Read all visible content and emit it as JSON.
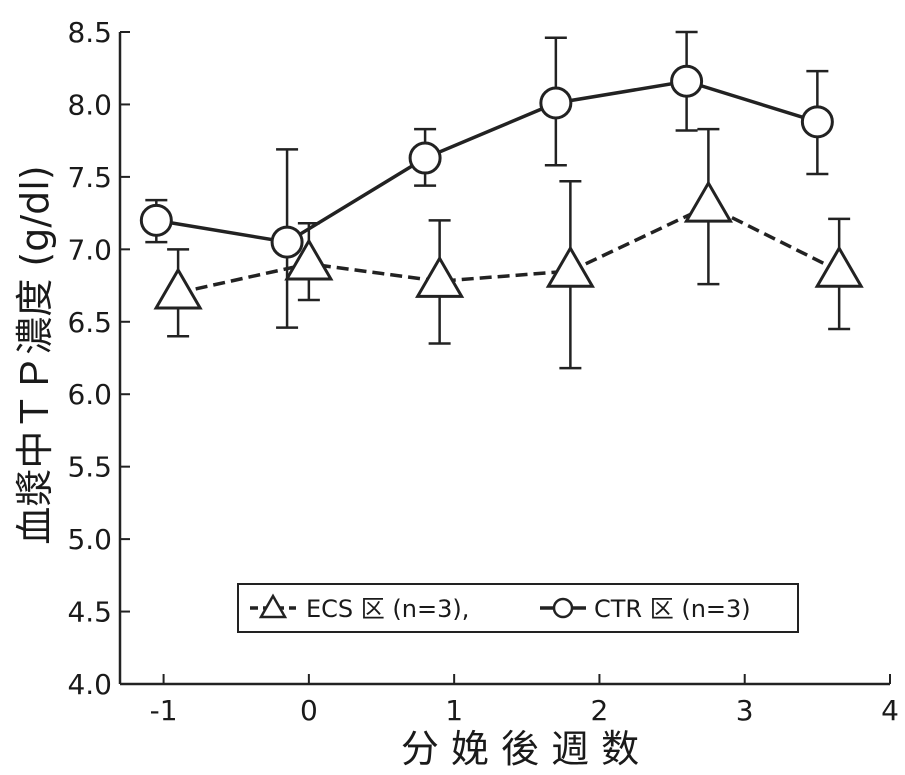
{
  "chart_data": {
    "type": "line",
    "xlabel": "分 娩 後 週 数",
    "ylabel": "血漿中ＴＰ濃度 (g/dl)",
    "xlim": [
      -1.3,
      4.0
    ],
    "ylim": [
      4.0,
      8.5
    ],
    "x_ticks": [
      -1,
      0,
      1,
      2,
      3,
      4
    ],
    "x_tick_labels": [
      "-1",
      "0",
      "1",
      "2",
      "3",
      "4"
    ],
    "y_ticks": [
      4.0,
      4.5,
      5.0,
      5.5,
      6.0,
      6.5,
      7.0,
      7.5,
      8.0,
      8.5
    ],
    "y_tick_labels": [
      "4.0",
      "4.5",
      "5.0",
      "5.5",
      "6.0",
      "6.5",
      "7.0",
      "7.5",
      "8.0",
      "8.5"
    ],
    "grid": false,
    "legend_position": "bottom-center",
    "series": [
      {
        "name": "ECS 区 (n=3),",
        "marker": "triangle",
        "line_style": "dashed",
        "x": [
          -0.9,
          0.0,
          0.9,
          1.8,
          2.75,
          3.65
        ],
        "y": [
          6.7,
          6.9,
          6.78,
          6.85,
          7.3,
          6.85
        ],
        "err_low": [
          6.4,
          6.65,
          6.35,
          6.18,
          6.76,
          6.45
        ],
        "err_high": [
          7.0,
          7.18,
          7.2,
          7.47,
          7.83,
          7.21
        ]
      },
      {
        "name": "CTR 区 (n=3)",
        "marker": "circle",
        "line_style": "solid",
        "x": [
          -1.05,
          -0.15,
          0.8,
          1.7,
          2.6,
          3.5
        ],
        "y": [
          7.2,
          7.05,
          7.63,
          8.01,
          8.16,
          7.88
        ],
        "err_low": [
          7.05,
          6.46,
          7.44,
          7.58,
          7.82,
          7.52
        ],
        "err_high": [
          7.34,
          7.69,
          7.83,
          8.46,
          8.5,
          8.23
        ]
      }
    ]
  }
}
